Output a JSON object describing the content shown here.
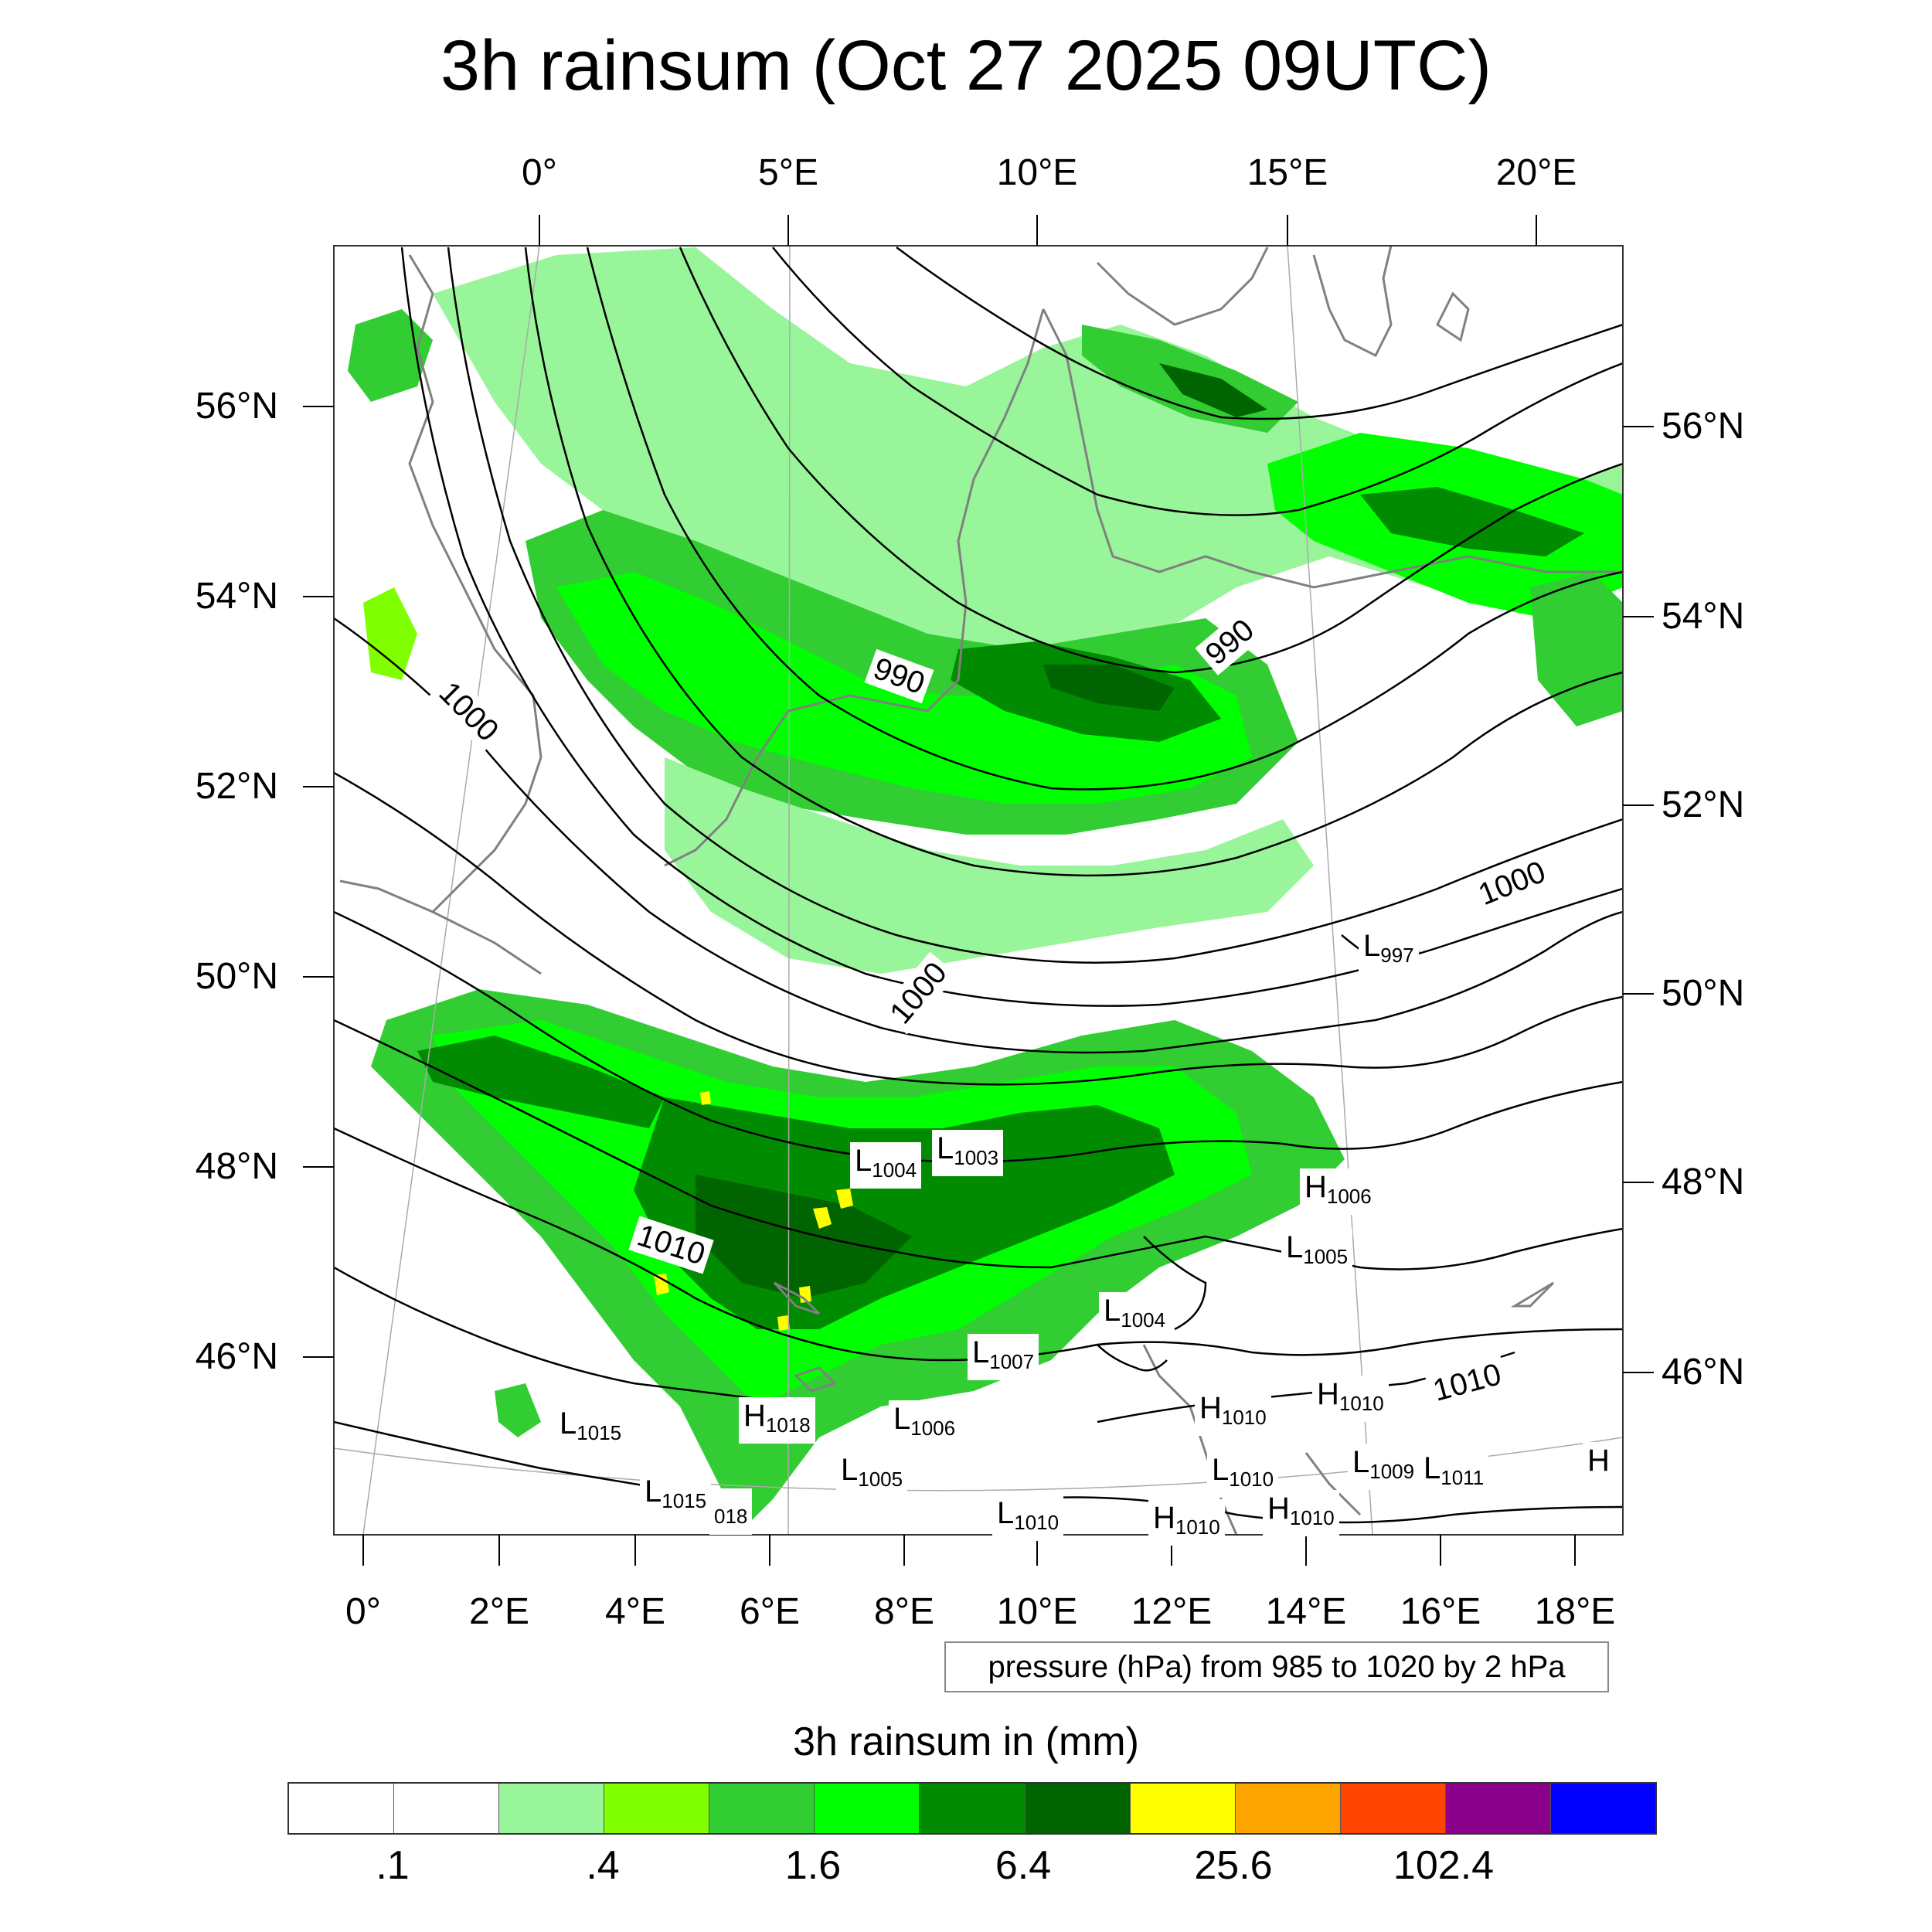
{
  "title": "3h rainsum (Oct 27 2025 09UTC)",
  "top_lon_labels": [
    "0°",
    "5°E",
    "10°E",
    "15°E",
    "20°E"
  ],
  "bottom_lon_labels": [
    "0°",
    "2°E",
    "4°E",
    "6°E",
    "8°E",
    "10°E",
    "12°E",
    "14°E",
    "16°E",
    "18°E"
  ],
  "left_lat_labels": [
    "56°N",
    "54°N",
    "52°N",
    "50°N",
    "48°N",
    "46°N"
  ],
  "right_lat_labels": [
    "56°N",
    "54°N",
    "52°N",
    "50°N",
    "48°N",
    "46°N"
  ],
  "pressure_note": "pressure (hPa) from 985 to 1020 by 2 hPa",
  "legend_title": "3h rainsum in (mm)",
  "legend_colors": [
    "#ffffff",
    "#ffffff",
    "#99f599",
    "#7fff00",
    "#32cd32",
    "#00ff00",
    "#008b00",
    "#006400",
    "#ffff00",
    "#ffa500",
    "#ff4500",
    "#8b008b",
    "#0000ff"
  ],
  "legend_tick_labels": [
    ".1",
    ".4",
    "1.6",
    "6.4",
    "25.6",
    "102.4"
  ],
  "isobar_labels": [
    "990",
    "990",
    "1000",
    "1000",
    "1000",
    "1010",
    "1010"
  ],
  "pressure_centers": [
    {
      "letter": "L",
      "value": "997"
    },
    {
      "letter": "L",
      "value": "1004"
    },
    {
      "letter": "L",
      "value": "1003"
    },
    {
      "letter": "H",
      "value": "1006"
    },
    {
      "letter": "L",
      "value": "1005"
    },
    {
      "letter": "L",
      "value": "1004"
    },
    {
      "letter": "L",
      "value": "1007"
    },
    {
      "letter": "H",
      "value": "1018"
    },
    {
      "letter": "L",
      "value": "1006"
    },
    {
      "letter": "L",
      "value": "1015"
    },
    {
      "letter": "L",
      "value": "1005"
    },
    {
      "letter": "L",
      "value": "1015"
    },
    {
      "letter": "",
      "value": "018"
    },
    {
      "letter": "H",
      "value": "1010"
    },
    {
      "letter": "H",
      "value": "1010"
    },
    {
      "letter": "L",
      "value": "1010"
    },
    {
      "letter": "L",
      "value": "1009"
    },
    {
      "letter": "L",
      "value": "1011"
    },
    {
      "letter": "H",
      "value": ""
    },
    {
      "letter": "L",
      "value": "1010"
    },
    {
      "letter": "H",
      "value": "1010"
    },
    {
      "letter": "H",
      "value": "1010"
    }
  ]
}
